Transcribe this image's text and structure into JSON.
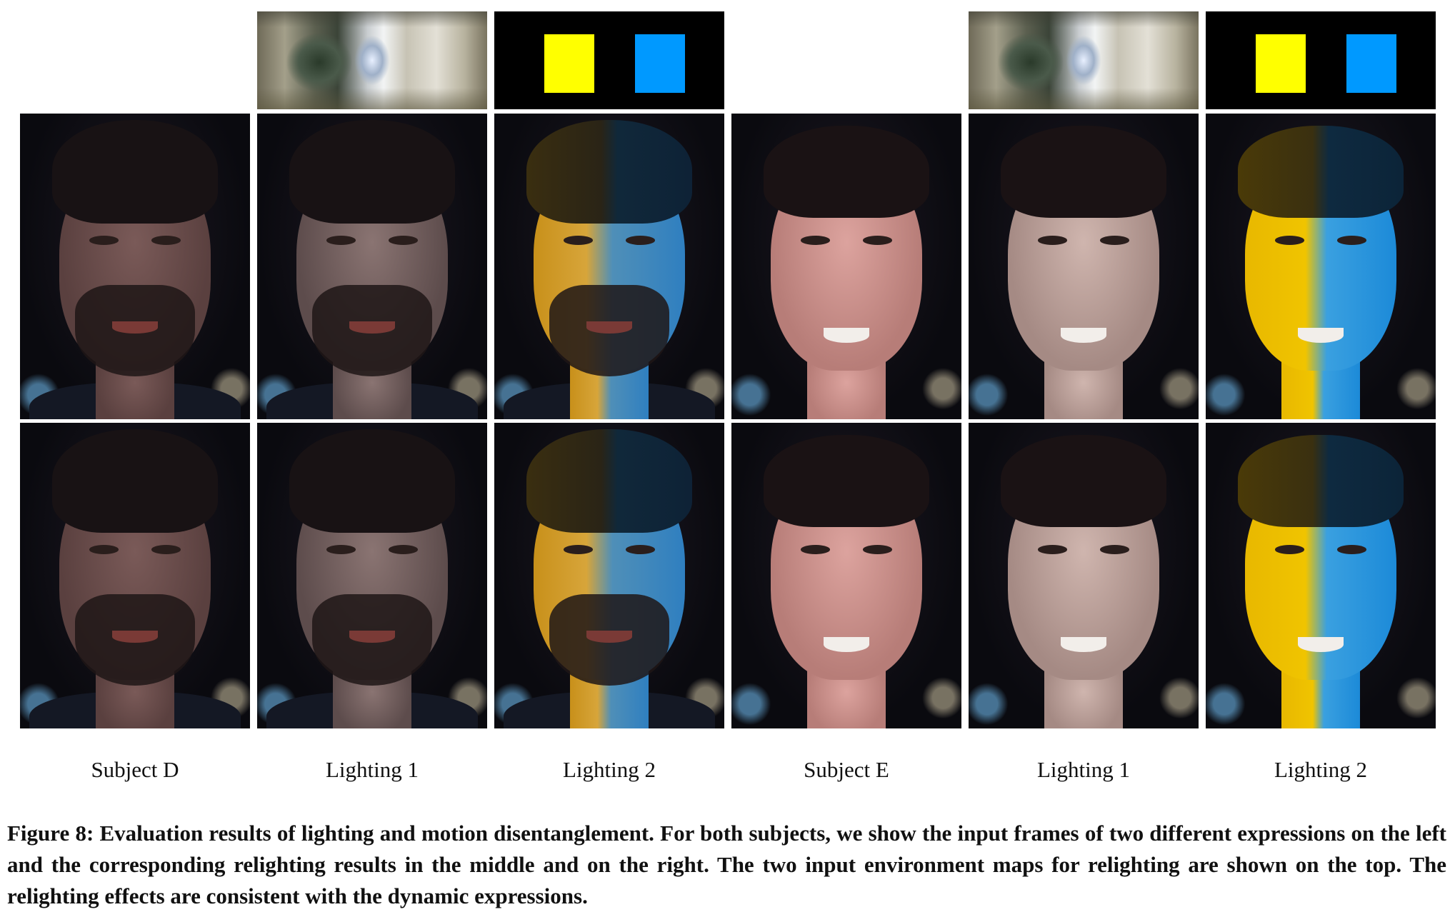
{
  "figure": {
    "column_labels": [
      "Subject D",
      "Lighting 1",
      "Lighting 2",
      "Subject E",
      "Lighting 1",
      "Lighting 2"
    ],
    "caption": "Figure 8: Evaluation results of lighting and motion disentanglement. For both subjects, we show the input frames of two different expressions on the left and the corresponding relighting results in the middle and on the right. The two input environment maps for relighting are shown on the top. The relighting effects are consistent with the dynamic expressions.",
    "colors": {
      "env_yellow": "#ffff00",
      "env_blue": "#0099ff",
      "env_background": "#000000"
    }
  }
}
